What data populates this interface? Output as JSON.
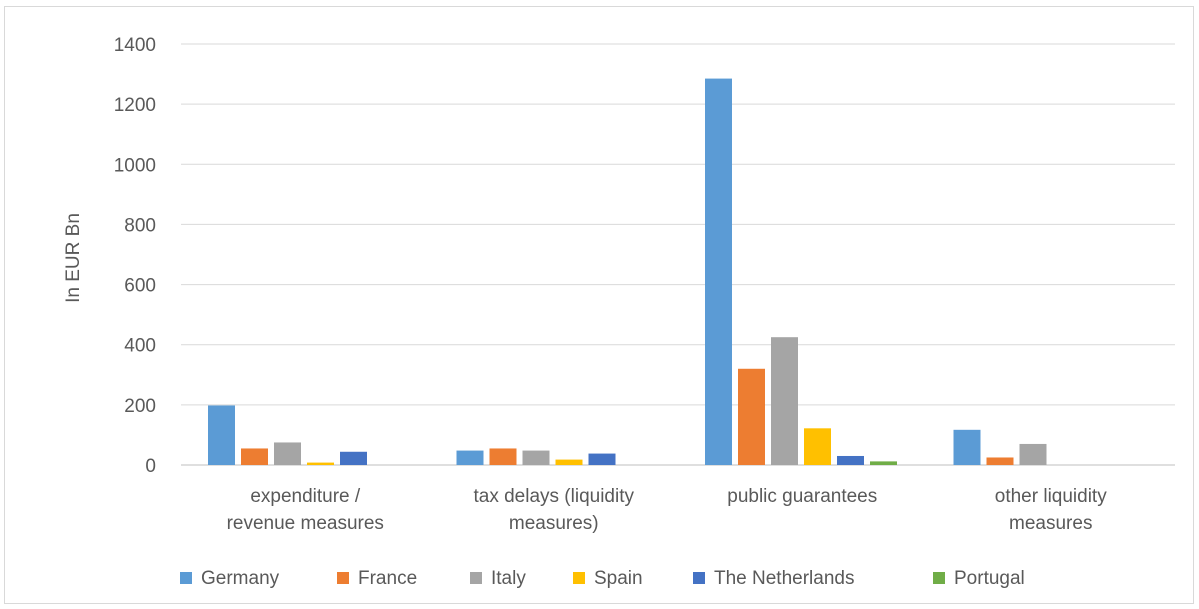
{
  "chart_data": {
    "type": "bar",
    "title": "",
    "ylabel": "In EUR Bn",
    "xlabel": "",
    "ylim": [
      0,
      1400
    ],
    "yticks": [
      0,
      200,
      400,
      600,
      800,
      1000,
      1200,
      1400
    ],
    "grid": true,
    "legend_position": "bottom",
    "categories": [
      [
        "expenditure /",
        "revenue measures"
      ],
      [
        "tax delays (liquidity",
        "measures)"
      ],
      [
        "public guarantees"
      ],
      [
        "other liquidity",
        "measures"
      ]
    ],
    "series": [
      {
        "name": "Germany",
        "color": "#5b9bd5",
        "values": [
          198,
          48,
          1285,
          117
        ]
      },
      {
        "name": "France",
        "color": "#ed7d31",
        "values": [
          55,
          55,
          320,
          25
        ]
      },
      {
        "name": "Italy",
        "color": "#a5a5a5",
        "values": [
          75,
          48,
          425,
          70
        ]
      },
      {
        "name": "Spain",
        "color": "#ffc000",
        "values": [
          8,
          18,
          122,
          0
        ]
      },
      {
        "name": "The Netherlands",
        "color": "#4472c4",
        "values": [
          44,
          38,
          30,
          0
        ]
      },
      {
        "name": "Portugal",
        "color": "#70ad47",
        "values": [
          0,
          0,
          12,
          0
        ]
      }
    ]
  }
}
